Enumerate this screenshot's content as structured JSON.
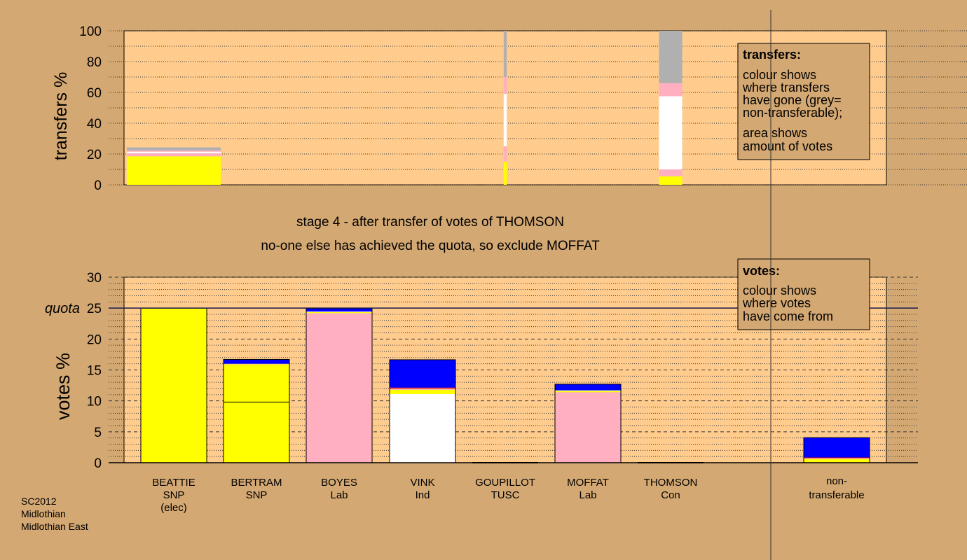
{
  "colors": {
    "background": "#d4a872",
    "plot_bg": "#ffcc8e",
    "SNP": "#ffff00",
    "Lab": "#ffafc0",
    "Ind": "#ffffff",
    "TUSC": "#cc0000",
    "Con": "#0000ff",
    "grey": "#b0b0b0",
    "line": "#000000",
    "quota_line": "#1a1a4d"
  },
  "footer": {
    "line1": "SC2012",
    "line2": "Midlothian",
    "line3": "Midlothian East"
  },
  "titles": {
    "stage": "stage 4 - after transfer of votes of THOMSON",
    "decision": "no-one else has achieved the quota, so exclude MOFFAT"
  },
  "notes": {
    "transfers": {
      "heading": "transfers:",
      "lines": [
        "colour shows",
        "where transfers",
        "have gone (grey=",
        "non-transferable);"
      ],
      "lines2": [
        "area shows",
        "amount of votes"
      ]
    },
    "votes": {
      "heading": "votes:",
      "lines": [
        "colour shows",
        "where votes",
        "have come from"
      ]
    }
  },
  "chart_data": [
    {
      "type": "bar",
      "stacked": true,
      "ylabel": "transfers %",
      "ylim": [
        0,
        100
      ],
      "yticks": [
        0,
        20,
        40,
        60,
        80,
        100
      ],
      "grid": "dotted",
      "bars": [
        {
          "name": "BEATTIE",
          "width_pct": 24.3,
          "segments": [
            {
              "party": "SNP",
              "value": 18.5
            },
            {
              "party": "Lab",
              "value": 2.0
            },
            {
              "party": "Ind",
              "value": 1.0
            },
            {
              "party": "Lab",
              "value": 0.8
            },
            {
              "party": "grey",
              "value": 2.0
            }
          ]
        },
        {
          "name": "VINK",
          "width_pct": 0.8,
          "segments": [
            {
              "party": "SNP",
              "value": 15
            },
            {
              "party": "Lab",
              "value": 10
            },
            {
              "party": "Ind",
              "value": 34
            },
            {
              "party": "Lab",
              "value": 11
            },
            {
              "party": "grey",
              "value": 30
            }
          ]
        },
        {
          "name": "THOMSON",
          "width_pct": 6.0,
          "segments": [
            {
              "party": "SNP",
              "value": 5.5
            },
            {
              "party": "Lab",
              "value": 4.5
            },
            {
              "party": "Ind",
              "value": 47.5
            },
            {
              "party": "Lab",
              "value": 8.5
            },
            {
              "party": "grey",
              "value": 34.0
            }
          ]
        }
      ]
    },
    {
      "type": "bar",
      "stacked": true,
      "ylabel": "votes %",
      "ylim": [
        0,
        30
      ],
      "yticks": [
        0,
        5,
        10,
        15,
        20,
        25,
        30
      ],
      "quota": 25,
      "quota_label": "quota",
      "grid": "dashed",
      "categories": [
        {
          "name": "BEATTIE",
          "party": "SNP",
          "extra": "(elec)"
        },
        {
          "name": "BERTRAM",
          "party": "SNP",
          "extra": ""
        },
        {
          "name": "BOYES",
          "party": "Lab",
          "extra": ""
        },
        {
          "name": "VINK",
          "party": "Ind",
          "extra": ""
        },
        {
          "name": "GOUPILLOT",
          "party": "TUSC",
          "extra": ""
        },
        {
          "name": "MOFFAT",
          "party": "Lab",
          "extra": ""
        },
        {
          "name": "THOMSON",
          "party": "Con",
          "extra": ""
        }
      ],
      "nontransferable_label": [
        "non-",
        "transferable"
      ],
      "bars": [
        {
          "name": "BEATTIE",
          "segments": [
            {
              "party": "SNP",
              "value": 25.0
            }
          ]
        },
        {
          "name": "BERTRAM",
          "segments": [
            {
              "party": "SNP",
              "value": 9.8
            },
            {
              "party": "SNP",
              "value": 6.1
            },
            {
              "party": "Lab",
              "value": 0.1
            },
            {
              "party": "Con",
              "value": 0.7
            }
          ]
        },
        {
          "name": "BOYES",
          "segments": [
            {
              "party": "Lab",
              "value": 24.2
            },
            {
              "party": "SNP",
              "value": 0.15
            },
            {
              "party": "Ind",
              "value": 0.1
            },
            {
              "party": "Con",
              "value": 0.5
            }
          ]
        },
        {
          "name": "VINK",
          "segments": [
            {
              "party": "Ind",
              "value": 11.1
            },
            {
              "party": "SNP",
              "value": 0.7
            },
            {
              "party": "Lab",
              "value": 0.2
            },
            {
              "party": "TUSC",
              "value": 0.15
            },
            {
              "party": "Con",
              "value": 4.5
            }
          ]
        },
        {
          "name": "GOUPILLOT",
          "segments": []
        },
        {
          "name": "MOFFAT",
          "segments": [
            {
              "party": "Lab",
              "value": 11.4
            },
            {
              "party": "SNP",
              "value": 0.2
            },
            {
              "party": "Ind",
              "value": 0.1
            },
            {
              "party": "Con",
              "value": 1.0
            }
          ]
        },
        {
          "name": "THOMSON",
          "segments": []
        },
        {
          "name": "non-transferable",
          "segments": [
            {
              "party": "SNP",
              "value": 0.6
            },
            {
              "party": "Lab",
              "value": 0.15
            },
            {
              "party": "TUSC",
              "value": 0.1
            },
            {
              "party": "Con",
              "value": 3.2
            }
          ]
        }
      ]
    }
  ]
}
